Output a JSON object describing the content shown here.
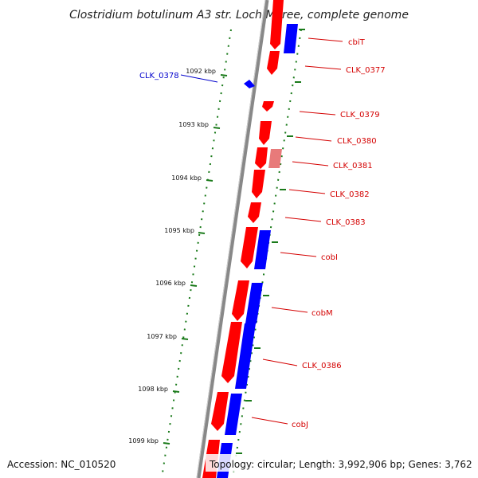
{
  "title": "Clostridium botulinum A3 str. Loch Maree, complete genome",
  "footer": {
    "accession": "Accession: NC_010520",
    "summary": "Topology: circular; Length: 3,992,906 bp; Genes: 3,762"
  },
  "scale_labels": [
    "1092 kbp",
    "1093 kbp",
    "1094 kbp",
    "1095 kbp",
    "1096 kbp",
    "1097 kbp",
    "1098 kbp",
    "1099 kbp"
  ],
  "gene_labels": [
    {
      "text": "cbiT",
      "color": "#d40000"
    },
    {
      "text": "CLK_0377",
      "color": "#d40000"
    },
    {
      "text": "CLK_0378",
      "color": "#0000cc"
    },
    {
      "text": "CLK_0379",
      "color": "#d40000"
    },
    {
      "text": "CLK_0380",
      "color": "#d40000"
    },
    {
      "text": "CLK_0381",
      "color": "#d40000"
    },
    {
      "text": "CLK_0382",
      "color": "#d40000"
    },
    {
      "text": "CLK_0383",
      "color": "#d40000"
    },
    {
      "text": "cobI",
      "color": "#d40000"
    },
    {
      "text": "cobM",
      "color": "#d40000"
    },
    {
      "text": "CLK_0386",
      "color": "#d40000"
    },
    {
      "text": "cobJ",
      "color": "#d40000"
    }
  ],
  "colors": {
    "forward_gene": "#ff0000",
    "reverse_gene": "#0000ff",
    "pseudo_gene": "#e87a7a",
    "backbone": "#888888",
    "ticks": "#1a7a1a"
  }
}
